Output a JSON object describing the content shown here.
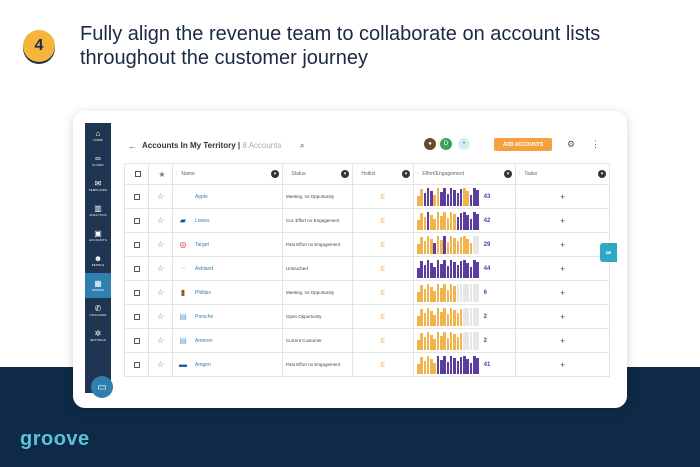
{
  "step_number": "4",
  "headline": "Fully align the revenue team to collaborate on account lists throughout the customer journey",
  "brand_logo": "groove",
  "colors": {
    "navy": "#0f2a47",
    "accent_orange": "#f5a142",
    "teal": "#5cc2d8",
    "bar_purple": "#5a3e9e",
    "bar_orange": "#f1b44f",
    "bar_gray": "#e6e6e6"
  },
  "sidebar": [
    {
      "icon": "home-icon",
      "glyph": "⌂",
      "label": "HOME"
    },
    {
      "icon": "flows-icon",
      "glyph": "∞",
      "label": "FLOWS"
    },
    {
      "icon": "templates-icon",
      "glyph": "✉",
      "label": "TEMPLATES"
    },
    {
      "icon": "analytics-icon",
      "glyph": "▥",
      "label": "ANALYTICS"
    },
    {
      "icon": "accounts-icon",
      "glyph": "▣",
      "label": "ACCOUNTS"
    },
    {
      "icon": "people-icon",
      "glyph": "☻",
      "label": "PEOPLE"
    },
    {
      "icon": "spaces-icon",
      "glyph": "▦",
      "label": "SPACES"
    },
    {
      "icon": "coaching-icon",
      "glyph": "✆",
      "label": "COACHING"
    },
    {
      "icon": "settings-icon",
      "glyph": "✲",
      "label": "SETTINGS"
    }
  ],
  "app": {
    "title": "Accounts In My Territory",
    "count": "8 Accounts",
    "add_button": "ADD ACCOUNTS",
    "avatar_initial": "D"
  },
  "columns": {
    "name": "Name",
    "status": "Status",
    "hotlist": "Hotlist",
    "effort": "Effort/Engagement",
    "tasks": "Tasks"
  },
  "rows": [
    {
      "name": "Apple",
      "logo": "apple-logo",
      "status": "Meeting, no Opportunity",
      "effort": "43",
      "bars": "OOPPPOOPPPPPPPOOPPP"
    },
    {
      "name": "Lowes",
      "logo": "lowes-logo",
      "status": "Cur. Effort no Engagement",
      "effort": "42",
      "bars": "OOOPOOOOOOOOPPPPPPP"
    },
    {
      "name": "Target",
      "logo": "target-logo",
      "status": "Past Effort no Engagement",
      "effort": "29",
      "bars": "OOOOOPOOPOOOOOOOOGG"
    },
    {
      "name": "Ashland",
      "logo": "ashland-logo",
      "status": "Untouched",
      "effort": "44",
      "bars": "PPPPPPPPPPPPPPPPPPP"
    },
    {
      "name": "Phillips",
      "logo": "phillips-logo",
      "status": "Meeting, no Opportunity",
      "effort": "6",
      "bars": "OOOOOOOOOOOOGGGGGGG"
    },
    {
      "name": "Porsche",
      "logo": "porsche-logo",
      "status": "Open Opportunity",
      "effort": "2",
      "bars": "OOOOOOOOOOOOOOGGGGG"
    },
    {
      "name": "Ameren",
      "logo": "ameren-logo",
      "status": "Current Customer",
      "effort": "2",
      "bars": "OOOOOOOOOOOOOOGGGGG"
    },
    {
      "name": "Amgen",
      "logo": "amgen-logo",
      "status": "Past Effort no Engagement",
      "effort": "41",
      "bars": "OOOOOOPPPPPPPPPPPPP"
    }
  ]
}
